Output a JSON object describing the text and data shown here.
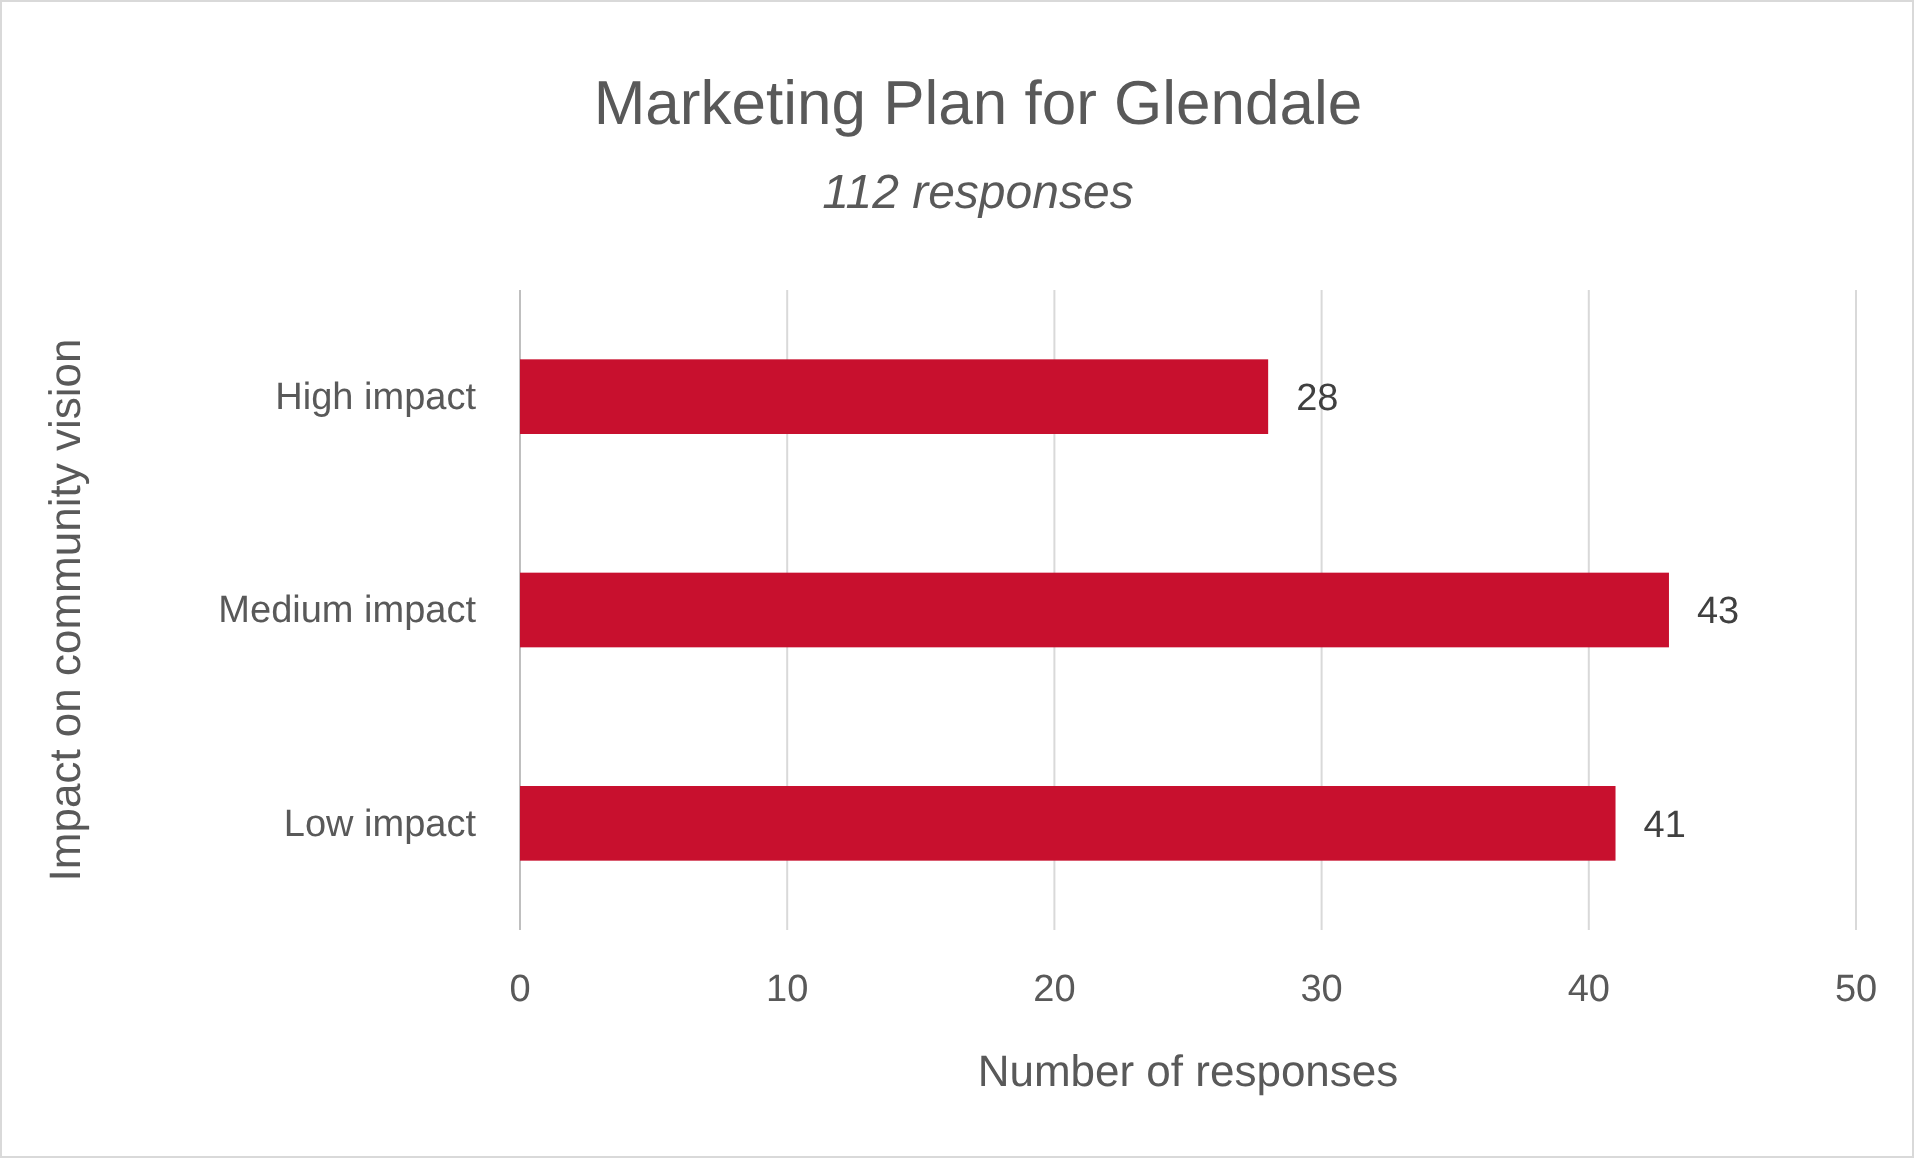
{
  "chart_data": {
    "type": "bar",
    "orientation": "horizontal",
    "title": "Marketing Plan for Glendale",
    "subtitle": "112 responses",
    "xlabel": "Number of responses",
    "ylabel": "Impact on community vision",
    "categories": [
      "High impact",
      "Medium impact",
      "Low impact"
    ],
    "values": [
      28,
      43,
      41
    ],
    "color": "#c8102e",
    "xlim": [
      0,
      50
    ],
    "xticks": [
      0,
      10,
      20,
      30,
      40,
      50
    ],
    "grid": "x",
    "data_labels": true
  }
}
